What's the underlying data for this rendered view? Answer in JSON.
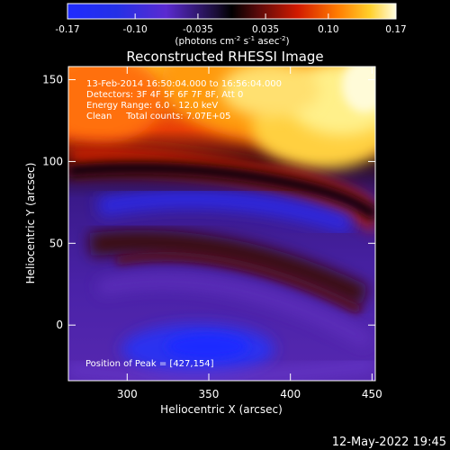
{
  "chart_data": {
    "type": "heatmap",
    "title": "Reconstructed RHESSI Image",
    "xlabel": "Heliocentric X (arcsec)",
    "ylabel": "Heliocentric Y (arcsec)",
    "xlim": [
      264,
      452
    ],
    "ylim": [
      -34,
      158
    ],
    "x_ticks": [
      300,
      350,
      400,
      450
    ],
    "y_ticks": [
      0,
      50,
      100,
      150
    ],
    "colorbar": {
      "ticks": [
        "-0.17",
        "-0.10",
        "-0.035",
        "0.035",
        "0.10",
        "0.17"
      ],
      "unit_label": "(photons cm-2 s-1 asec-2)",
      "range": [
        -0.17,
        0.17
      ]
    },
    "annotations": [
      "13-Feb-2014 16:50:04.000 to 16:56:04.000",
      "Detectors: 3F 4F 5F 6F 7F 8F, Att 0",
      "Energy Range: 6.0 - 12.0 keV",
      "Clean     Total counts: 7.07E+05"
    ],
    "peak_label": "Position of Peak = [427,154]",
    "peak": [
      427,
      154
    ]
  },
  "footer": {
    "timestamp": "12-May-2022 19:45"
  },
  "colors": {
    "background": "#000000",
    "foreground": "#ffffff"
  }
}
